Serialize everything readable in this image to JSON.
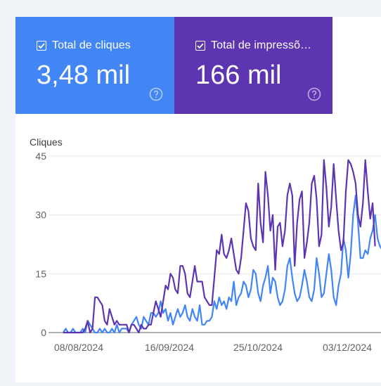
{
  "metrics": {
    "clicks": {
      "label": "Total de cliques",
      "value": "3,48 mil",
      "color": "#4285f4"
    },
    "impressions": {
      "label": "Total de impressõ…",
      "value": "166 mil",
      "color": "#5e35b1"
    }
  },
  "chart_data": {
    "type": "line",
    "ylabel": "Cliques",
    "yticks": [
      "0",
      "15",
      "30",
      "45"
    ],
    "ylim": [
      0,
      45
    ],
    "xticks": [
      "08/08/2024",
      "16/09/2024",
      "25/10/2024",
      "03/12/2024"
    ],
    "grid": true,
    "series": [
      {
        "color": "#4285f4",
        "values": [
          0,
          1,
          0,
          0,
          1,
          0,
          0,
          0,
          1,
          0,
          3,
          2,
          1,
          0,
          0,
          1,
          0,
          1,
          0,
          0,
          1,
          0,
          2,
          0,
          1,
          1,
          1,
          0,
          2,
          3,
          4,
          2,
          1,
          4,
          3,
          2,
          5,
          5,
          4,
          5,
          8,
          5,
          6,
          3,
          5,
          2,
          4,
          6,
          4,
          5,
          7,
          4,
          3,
          6,
          4,
          3,
          7,
          2,
          2,
          3,
          3,
          4,
          8,
          6,
          9,
          7,
          8,
          6,
          9,
          8,
          13,
          7,
          9,
          10,
          13,
          12,
          9,
          11,
          16,
          15,
          10,
          8,
          12,
          14,
          17,
          10,
          14,
          13,
          9,
          7,
          8,
          11,
          17,
          19,
          14,
          10,
          8,
          9,
          12,
          16,
          13,
          9,
          8,
          11,
          19,
          15,
          9,
          10,
          15,
          20,
          16,
          9,
          7,
          12,
          15,
          24,
          21,
          14,
          20,
          30,
          35,
          28,
          19,
          19,
          21,
          20,
          24,
          26,
          30,
          24,
          22,
          21
        ]
      },
      {
        "color": "#5e35b1",
        "values": [
          0,
          0,
          0,
          0,
          0,
          0,
          0,
          0,
          0,
          1,
          3,
          0,
          1,
          9,
          9,
          8,
          7,
          3,
          2,
          6,
          4,
          2,
          3,
          2,
          2,
          2,
          2,
          0,
          2,
          2,
          1,
          0,
          2,
          1,
          1,
          2,
          2,
          5,
          8,
          6,
          4,
          8,
          12,
          11,
          15,
          14,
          11,
          10,
          17,
          17,
          15,
          10,
          9,
          13,
          17,
          13,
          13,
          13,
          9,
          8,
          7,
          7,
          14,
          21,
          20,
          25,
          20,
          19,
          21,
          24,
          20,
          16,
          15,
          19,
          26,
          33,
          31,
          24,
          22,
          21,
          38,
          28,
          23,
          41,
          35,
          26,
          30,
          16,
          27,
          28,
          22,
          26,
          35,
          38,
          35,
          17,
          28,
          34,
          36,
          19,
          23,
          28,
          38,
          40,
          34,
          22,
          25,
          44,
          37,
          27,
          32,
          43,
          34,
          26,
          21,
          23,
          36,
          44,
          43,
          41,
          38,
          30,
          27,
          33,
          44,
          36,
          29,
          33,
          22
        ]
      }
    ]
  }
}
